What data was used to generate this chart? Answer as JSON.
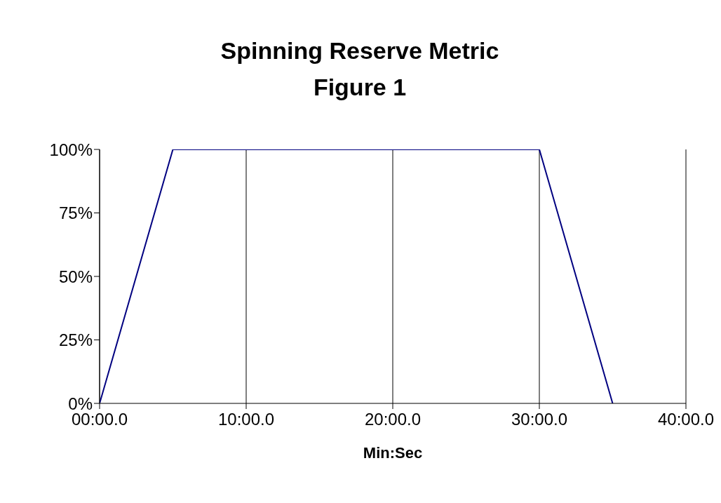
{
  "chart_data": {
    "type": "line",
    "title": "Spinning Reserve Metric",
    "subtitle": "Figure 1",
    "xlabel": "Min:Sec",
    "categories": [
      "00:00.0",
      null,
      "10:00.0",
      null,
      "20:00.0",
      null,
      "30:00.0",
      null,
      "40:00.0"
    ],
    "series": [
      {
        "color": "#000080",
        "values": [
          0,
          100,
          100,
          100,
          100,
          100,
          100,
          0,
          null
        ]
      }
    ],
    "ylim": [
      0,
      100
    ],
    "yticks": [
      {
        "value": 0,
        "label": "0%"
      },
      {
        "value": 25,
        "label": "25%"
      },
      {
        "value": 50,
        "label": "50%"
      },
      {
        "value": 75,
        "label": "75%"
      },
      {
        "value": 100,
        "label": "100%"
      }
    ],
    "grid": "x",
    "legend": false,
    "marker": "none",
    "line_style": "solid"
  }
}
